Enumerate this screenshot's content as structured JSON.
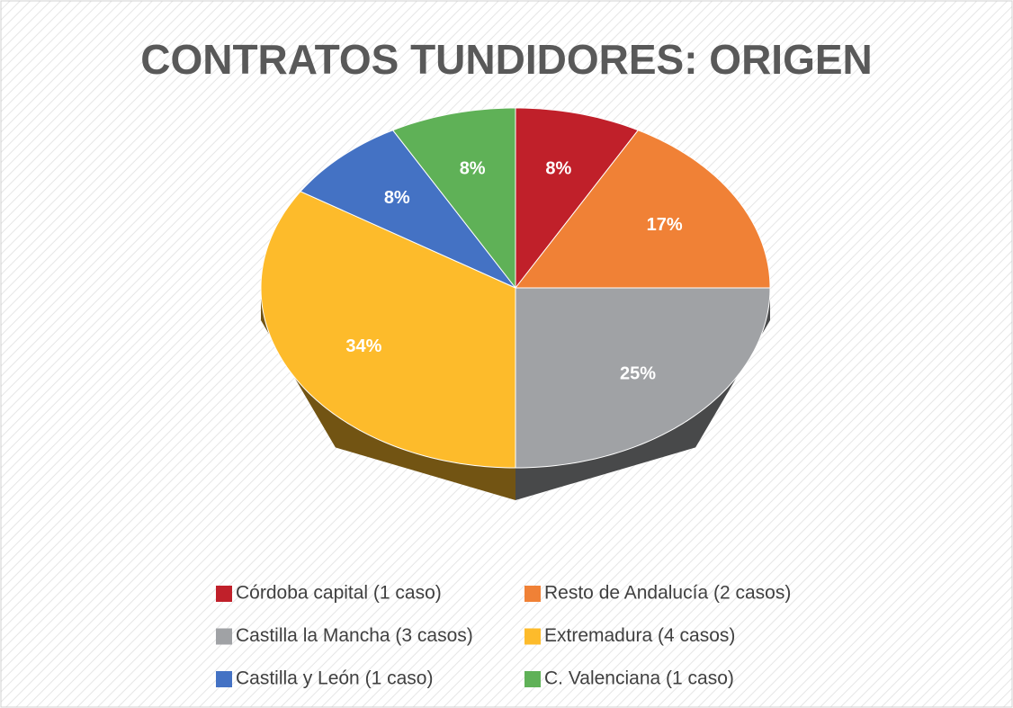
{
  "chart_data": {
    "type": "pie",
    "title": "CONTRATOS TUNDIDORES: ORIGEN",
    "categories": [
      "Córdoba capital (1 caso)",
      "Resto de Andalucía (2 casos)",
      "Castilla la Mancha (3 casos)",
      "Extremadura (4 casos)",
      "Castilla y León (1 caso)",
      "C. Valenciana (1 caso)"
    ],
    "values": [
      8,
      17,
      25,
      34,
      8,
      8
    ],
    "value_labels": [
      "8%",
      "17%",
      "25%",
      "34%",
      "8%",
      "8%"
    ],
    "colors": [
      "#c0202a",
      "#f08136",
      "#a0a2a5",
      "#fdbb2b",
      "#4472c4",
      "#5fb157"
    ],
    "legend": "bottom"
  }
}
